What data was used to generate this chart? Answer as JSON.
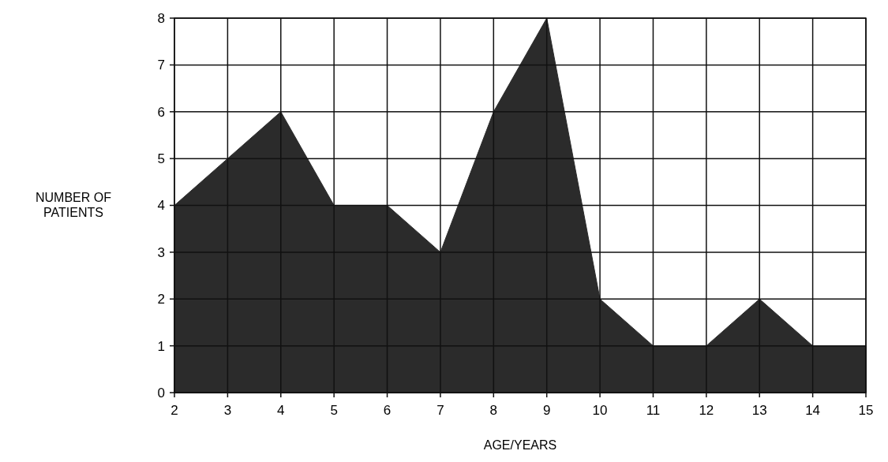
{
  "chart_data": {
    "type": "area",
    "xlabel": "AGE/YEARS",
    "ylabel": "NUMBER OF PATIENTS",
    "x": [
      2,
      3,
      4,
      5,
      6,
      7,
      8,
      9,
      10,
      11,
      12,
      13,
      14,
      15
    ],
    "series": [
      {
        "color": "#2b2b2b",
        "values": [
          4,
          5,
          6,
          4,
          4,
          3,
          6,
          8,
          2,
          1,
          1,
          2,
          1,
          1
        ]
      }
    ],
    "xlim": [
      2,
      15
    ],
    "xticks": [
      2,
      3,
      4,
      5,
      6,
      7,
      8,
      9,
      10,
      11,
      12,
      13,
      14,
      15
    ],
    "ylim": [
      0,
      8
    ],
    "yticks": [
      0,
      1,
      2,
      3,
      4,
      5,
      6,
      7,
      8
    ],
    "grid": true
  }
}
